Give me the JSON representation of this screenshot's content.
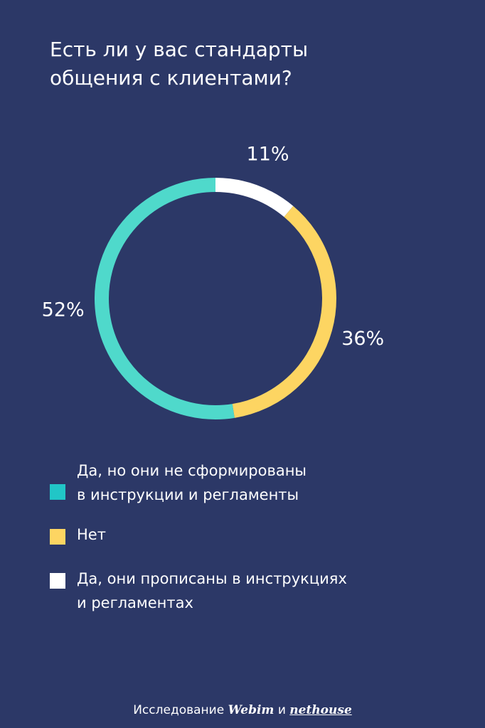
{
  "title": {
    "line1": "Есть ли у вас стандарты",
    "line2": "общения с клиентами?"
  },
  "chart_data": {
    "type": "pie",
    "style": "donut",
    "title": "Есть ли у вас стандарты общения с клиентами?",
    "slices": [
      {
        "label": "Да, они прописаны в инструкциях и регламентах",
        "value": 11,
        "display": "11%",
        "color": "#ffffff"
      },
      {
        "label": "Нет",
        "value": 36,
        "display": "36%",
        "color": "#fdd562"
      },
      {
        "label": "Да, но они не сформированы в инструкции и регламенты",
        "value": 52,
        "display": "52%",
        "color": "#4fd9cb"
      }
    ],
    "legend_placement": "bottom"
  },
  "legend": [
    {
      "lines": [
        "Да, но они не сформированы",
        "в инструкции и регламенты"
      ],
      "color": "#21c6c7"
    },
    {
      "lines": [
        "Нет"
      ],
      "color": "#fdd562"
    },
    {
      "lines": [
        "Да, они прописаны в инструкциях",
        "и регламентах"
      ],
      "color": "#ffffff"
    }
  ],
  "footer": {
    "prefix": "Исследование",
    "brand1": "Webim",
    "conj": "и",
    "brand2": "nethouse"
  },
  "colors": {
    "background": "#2c3867"
  }
}
